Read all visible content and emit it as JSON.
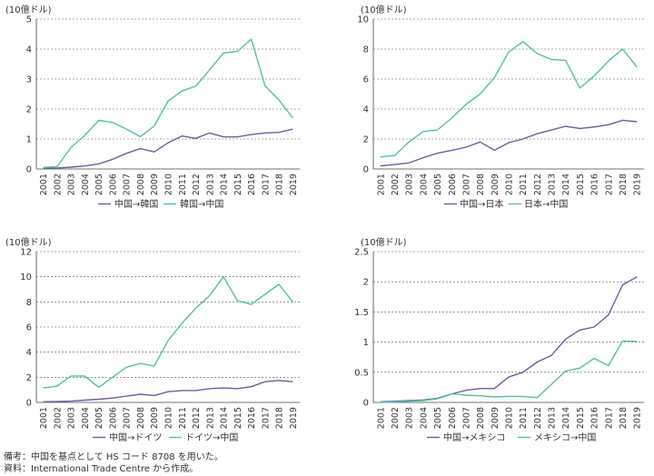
{
  "colors": {
    "china_export": "#6b5fa3",
    "import_to_china": "#4fc3a1",
    "grid": "#555555",
    "axis": "#444444"
  },
  "notes": {
    "line1": "備考：中国を基点として HS コード 8708 を用いた。",
    "line2": "資料：International Trade Centre から作成。"
  },
  "chart_data": [
    {
      "type": "line",
      "unit_label": "(10億ドル)",
      "x": [
        "2001",
        "2002",
        "2003",
        "2004",
        "2005",
        "2006",
        "2007",
        "2008",
        "2009",
        "2010",
        "2011",
        "2012",
        "2013",
        "2014",
        "2015",
        "2016",
        "2017",
        "2018",
        "2019"
      ],
      "ylim": [
        0,
        5
      ],
      "yticks": [
        0,
        1,
        2,
        3,
        4,
        5
      ],
      "grid": true,
      "legend_position": "bottom",
      "series": [
        {
          "name": "中国→韓国",
          "color_key": "china_export",
          "values": [
            0.02,
            0.03,
            0.06,
            0.1,
            0.17,
            0.32,
            0.52,
            0.68,
            0.57,
            0.87,
            1.1,
            1.02,
            1.2,
            1.07,
            1.07,
            1.15,
            1.2,
            1.22,
            1.33
          ]
        },
        {
          "name": "韓国→中国",
          "color_key": "import_to_china",
          "values": [
            0.05,
            0.08,
            0.72,
            1.12,
            1.62,
            1.55,
            1.33,
            1.08,
            1.43,
            2.26,
            2.6,
            2.76,
            3.31,
            3.87,
            3.92,
            4.33,
            2.78,
            2.3,
            1.7
          ]
        }
      ]
    },
    {
      "type": "line",
      "unit_label": "(10億ドル)",
      "x": [
        "2001",
        "2002",
        "2003",
        "2004",
        "2005",
        "2006",
        "2007",
        "2008",
        "2009",
        "2010",
        "2011",
        "2012",
        "2013",
        "2014",
        "2015",
        "2016",
        "2017",
        "2018",
        "2019"
      ],
      "ylim": [
        0,
        10
      ],
      "yticks": [
        0,
        2,
        4,
        6,
        8,
        10
      ],
      "grid": true,
      "legend_position": "bottom",
      "series": [
        {
          "name": "中国→日本",
          "color_key": "china_export",
          "values": [
            0.2,
            0.3,
            0.4,
            0.75,
            1.05,
            1.25,
            1.45,
            1.8,
            1.25,
            1.75,
            2.0,
            2.35,
            2.6,
            2.85,
            2.7,
            2.8,
            2.95,
            3.25,
            3.15
          ]
        },
        {
          "name": "日本→中国",
          "color_key": "import_to_china",
          "values": [
            0.8,
            0.9,
            1.8,
            2.5,
            2.6,
            3.4,
            4.3,
            5.0,
            6.1,
            7.8,
            8.5,
            7.7,
            7.3,
            7.25,
            5.4,
            6.2,
            7.2,
            8.0,
            6.8
          ]
        }
      ]
    },
    {
      "type": "line",
      "unit_label": "(10億ドル)",
      "x": [
        "2001",
        "2002",
        "2003",
        "2004",
        "2005",
        "2006",
        "2007",
        "2008",
        "2009",
        "2010",
        "2011",
        "2012",
        "2013",
        "2014",
        "2015",
        "2016",
        "2017",
        "2018",
        "2019"
      ],
      "ylim": [
        0,
        12
      ],
      "yticks": [
        0,
        2,
        4,
        6,
        8,
        10,
        12
      ],
      "grid": true,
      "legend_position": "bottom",
      "series": [
        {
          "name": "中国→ドイツ",
          "color_key": "china_export",
          "values": [
            0.05,
            0.07,
            0.1,
            0.18,
            0.25,
            0.35,
            0.5,
            0.65,
            0.55,
            0.85,
            0.95,
            0.95,
            1.1,
            1.15,
            1.1,
            1.25,
            1.65,
            1.75,
            1.65
          ]
        },
        {
          "name": "ドイツ→中国",
          "color_key": "import_to_china",
          "values": [
            1.15,
            1.3,
            2.1,
            2.1,
            1.2,
            2.0,
            2.8,
            3.1,
            2.9,
            4.9,
            6.3,
            7.5,
            8.5,
            10.0,
            8.1,
            7.8,
            8.6,
            9.4,
            8.0
          ]
        }
      ]
    },
    {
      "type": "line",
      "unit_label": "(10億ドル)",
      "x": [
        "2001",
        "2002",
        "2003",
        "2004",
        "2005",
        "2006",
        "2007",
        "2008",
        "2009",
        "2010",
        "2011",
        "2012",
        "2013",
        "2014",
        "2015",
        "2016",
        "2017",
        "2018",
        "2019"
      ],
      "ylim": [
        0,
        2.5
      ],
      "yticks": [
        0,
        0.5,
        1,
        1.5,
        2,
        2.5
      ],
      "ytick_labels": [
        "0",
        "0.5",
        "1",
        "1.5",
        "2",
        "2.5"
      ],
      "grid": true,
      "legend_position": "bottom",
      "series": [
        {
          "name": "中国→メキシコ",
          "color_key": "china_export",
          "values": [
            0.01,
            0.02,
            0.03,
            0.04,
            0.07,
            0.14,
            0.2,
            0.23,
            0.23,
            0.42,
            0.5,
            0.67,
            0.78,
            1.05,
            1.2,
            1.25,
            1.45,
            1.95,
            2.08
          ]
        },
        {
          "name": "メキシコ→中国",
          "color_key": "import_to_china",
          "values": [
            0.0,
            0.01,
            0.02,
            0.03,
            0.06,
            0.14,
            0.12,
            0.11,
            0.09,
            0.1,
            0.1,
            0.08,
            0.3,
            0.52,
            0.57,
            0.73,
            0.61,
            1.02,
            1.01
          ]
        }
      ]
    }
  ]
}
